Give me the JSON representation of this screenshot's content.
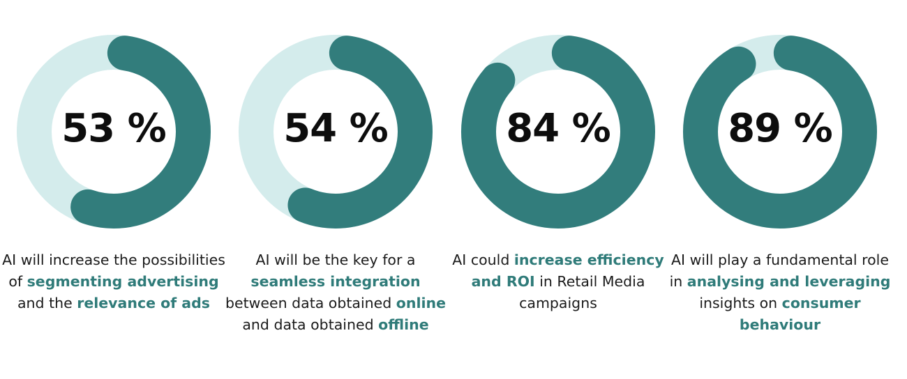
{
  "colors": {
    "track": "#d4ecec",
    "fill": "#327d7c",
    "text": "#1a1a1a",
    "highlight": "#2f7b79"
  },
  "chart_data": {
    "type": "donut",
    "items": [
      {
        "value": 53,
        "label": "53 %",
        "caption": [
          {
            "text": "AI will increase the possibilities of ",
            "hl": false
          },
          {
            "text": "segmenting advertising",
            "hl": true
          },
          {
            "text": " and the ",
            "hl": false
          },
          {
            "text": "relevance of ads",
            "hl": true
          }
        ]
      },
      {
        "value": 54,
        "label": "54 %",
        "caption": [
          {
            "text": "AI will be the key for a ",
            "hl": false
          },
          {
            "text": "seamless integration",
            "hl": true
          },
          {
            "text": " between data obtained ",
            "hl": false
          },
          {
            "text": "online",
            "hl": true
          },
          {
            "text": " and data obtained ",
            "hl": false
          },
          {
            "text": "offline",
            "hl": true
          }
        ]
      },
      {
        "value": 84,
        "label": "84 %",
        "caption": [
          {
            "text": "AI could ",
            "hl": false
          },
          {
            "text": "increase efficiency and ROI",
            "hl": true
          },
          {
            "text": " in Retail Media campaigns",
            "hl": false
          }
        ]
      },
      {
        "value": 89,
        "label": "89 %",
        "caption": [
          {
            "text": "AI will play a fundamental role in ",
            "hl": false
          },
          {
            "text": "analysing and leveraging",
            "hl": true
          },
          {
            "text": " insights on ",
            "hl": false
          },
          {
            "text": "consumer behaviour",
            "hl": true
          }
        ]
      }
    ]
  }
}
